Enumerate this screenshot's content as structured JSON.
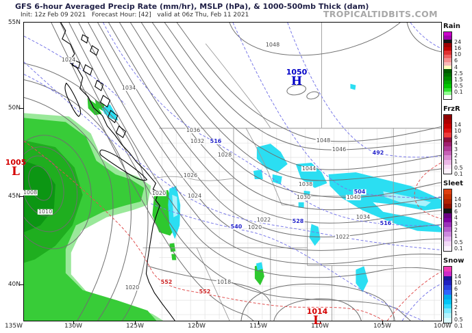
{
  "header": {
    "title": "GFS 6-hour Averaged Precip Rate (mm/hr), MSLP (hPa), & 1000-500mb Thick (dam)",
    "subtitle": "Init: 12z Feb 09 2021   Forecast Hour: [42]   valid at 06z Thu, Feb 11 2021",
    "watermark": "TROPICALTIDBITS.COM"
  },
  "axes": {
    "lat": [
      "55N",
      "50N",
      "45N",
      "40N"
    ],
    "lon": [
      "135W",
      "130W",
      "125W",
      "120W",
      "115W",
      "110W",
      "105W",
      "100W"
    ]
  },
  "markers": {
    "high": {
      "symbol": "H",
      "value": "1050"
    },
    "low_west": {
      "symbol": "L",
      "value": "1005"
    },
    "low_south": {
      "symbol": "L",
      "value": "1014"
    }
  },
  "map": {
    "mslp_labels": [
      "1024",
      "1034",
      "1048",
      "1048",
      "1046",
      "1044",
      "1038",
      "1036",
      "1032",
      "1028",
      "1026",
      "1030",
      "1040",
      "1034",
      "1022",
      "1020",
      "1022",
      "1020",
      "1024",
      "1008",
      "1010",
      "1020",
      "1018"
    ],
    "thickness_blue_labels": [
      "516",
      "492",
      "504",
      "528",
      "540",
      "516"
    ],
    "thickness_red_labels": [
      "552",
      "552"
    ]
  },
  "legend": {
    "sections": [
      {
        "title": "Rain",
        "labels": [
          "24",
          "16",
          "10",
          "6",
          "4",
          "2.5",
          "1.5",
          "0.5",
          "0.1"
        ],
        "colors": [
          "#cc00cc",
          "#a300ad",
          "#141414",
          "#9c0000",
          "#bf0000",
          "#e03030",
          "#ee6060",
          "#f49090",
          "#f8baba",
          "#ffffbe",
          "#005a00",
          "#007200",
          "#008c00",
          "#00a800",
          "#00c600",
          "#2ee22e",
          "#90fc90",
          "#ffffff"
        ]
      },
      {
        "title": "FrzR",
        "labels": [
          "14",
          "10",
          "6",
          "4",
          "3",
          "2",
          "1",
          "0.5",
          "0.1"
        ],
        "colors": [
          "#900000",
          "#ae0000",
          "#c90000",
          "#e01414",
          "#ef3c3c",
          "#8c1040",
          "#a12070",
          "#b23c98",
          "#c660b6",
          "#da8cd2",
          "#ebb6e6",
          "#f8dcf5",
          "#fdf2fc"
        ]
      },
      {
        "title": "Sleet",
        "labels": [
          "14",
          "10",
          "6",
          "4",
          "3",
          "2",
          "1",
          "0.5",
          "0.1"
        ],
        "colors": [
          "#e04010",
          "#c83000",
          "#b02200",
          "#901000",
          "#141414",
          "#6a0082",
          "#8000a2",
          "#9b30ba",
          "#b55ecc",
          "#cd8ade",
          "#e2b4ee",
          "#f3daf8",
          "#fcf2fe"
        ]
      },
      {
        "title": "Snow",
        "labels": [
          "14",
          "10",
          "6",
          "4",
          "3",
          "2",
          "1",
          "0.5",
          "0.1"
        ],
        "colors": [
          "#f03cb4",
          "#d028c8",
          "#1c1696",
          "#2020c0",
          "#2a42e0",
          "#2f64ff",
          "#00aaf0",
          "#00c6f8",
          "#30daff",
          "#7ce9ff",
          "#b2f3ff",
          "#dcfbff"
        ]
      }
    ]
  },
  "colors": {
    "rain_shading": [
      "#9ae89a",
      "#38cc38",
      "#1fae1f",
      "#0c9613"
    ],
    "snow_shading": [
      "#2bdef2",
      "#a8f2fc"
    ],
    "mslp_contour": "#6e6e6e",
    "thickness_cold": "#7878e8",
    "thickness_warm": "#e05050",
    "high_marker": "#0000c8",
    "low_marker": "#d40000"
  }
}
